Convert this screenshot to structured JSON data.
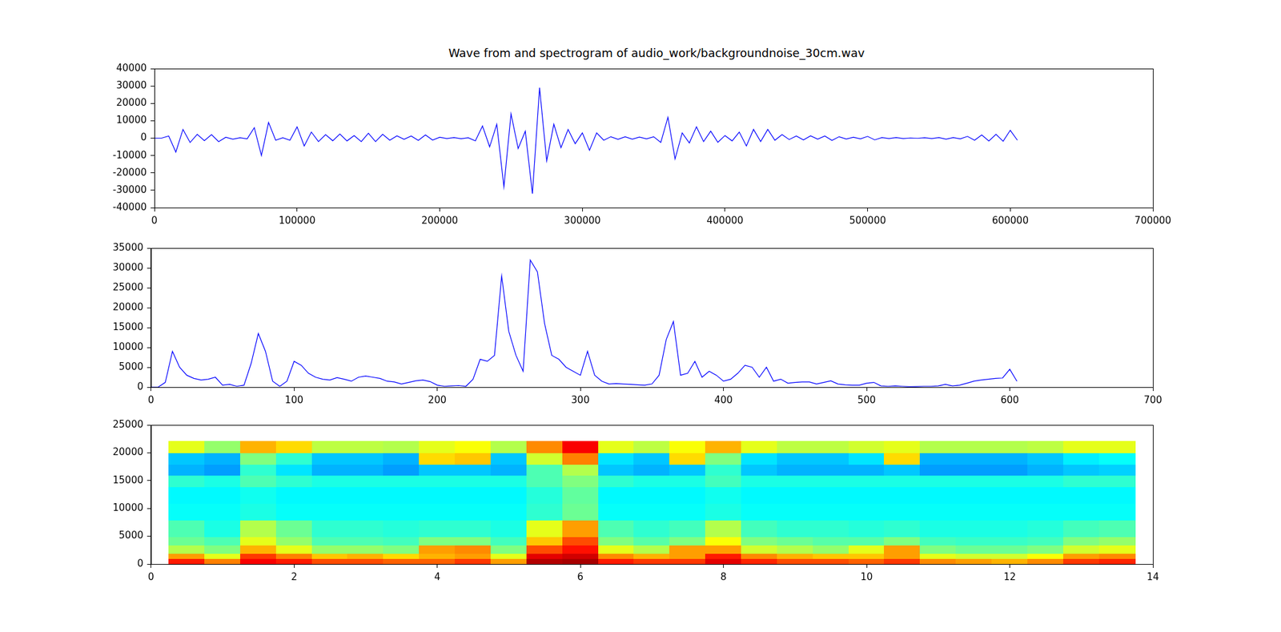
{
  "chart_data": [
    {
      "type": "line",
      "title": "Wave from and spectrogram of audio_work/backgroundnoise_30cm.wav",
      "color": "#0000ff",
      "grid": false,
      "x": [
        0,
        5000,
        10000,
        15000,
        20000,
        25000,
        30000,
        35000,
        40000,
        45000,
        50000,
        55000,
        60000,
        65000,
        70000,
        75000,
        80000,
        85000,
        90000,
        95000,
        100000,
        105000,
        110000,
        115000,
        120000,
        125000,
        130000,
        135000,
        140000,
        145000,
        150000,
        155000,
        160000,
        165000,
        170000,
        175000,
        180000,
        185000,
        190000,
        195000,
        200000,
        205000,
        210000,
        215000,
        220000,
        225000,
        230000,
        235000,
        240000,
        245000,
        250000,
        255000,
        260000,
        265000,
        270000,
        275000,
        280000,
        285000,
        290000,
        295000,
        300000,
        305000,
        310000,
        315000,
        320000,
        325000,
        330000,
        335000,
        340000,
        345000,
        350000,
        355000,
        360000,
        365000,
        370000,
        375000,
        380000,
        385000,
        390000,
        395000,
        400000,
        405000,
        410000,
        415000,
        420000,
        425000,
        430000,
        435000,
        440000,
        445000,
        450000,
        455000,
        460000,
        465000,
        470000,
        475000,
        480000,
        485000,
        490000,
        495000,
        500000,
        505000,
        510000,
        515000,
        520000,
        525000,
        530000,
        535000,
        540000,
        545000,
        550000,
        555000,
        560000,
        565000,
        570000,
        575000,
        580000,
        585000,
        590000,
        595000,
        600000,
        605000
      ],
      "values": [
        0,
        0,
        1200,
        -8000,
        5000,
        -2500,
        2200,
        -1500,
        2000,
        -2000,
        500,
        -600,
        200,
        -400,
        6000,
        -10000,
        9000,
        -1200,
        200,
        -1200,
        6500,
        -4500,
        3500,
        -2000,
        2000,
        -1500,
        2400,
        -1600,
        1500,
        -2000,
        2800,
        -2000,
        2200,
        -1200,
        1300,
        -700,
        1200,
        -1300,
        1800,
        -1100,
        500,
        -200,
        300,
        -300,
        200,
        -1600,
        7000,
        -5000,
        8000,
        -28000,
        14000,
        -6000,
        4000,
        -32000,
        29000,
        -13000,
        8000,
        -5500,
        5000,
        -3200,
        3000,
        -7000,
        3000,
        -1200,
        800,
        -700,
        800,
        -600,
        600,
        -400,
        800,
        -2500,
        12000,
        -12000,
        3000,
        -2800,
        6500,
        -2000,
        4000,
        -2400,
        1500,
        -1600,
        3500,
        -4500,
        5000,
        -2000,
        5000,
        -1200,
        2000,
        -800,
        1200,
        -1000,
        1300,
        -600,
        1200,
        -1300,
        800,
        -500,
        500,
        -400,
        1000,
        -1000,
        300,
        -200,
        300,
        -200,
        100,
        -100,
        200,
        -200,
        300,
        -600,
        300,
        -400,
        1000,
        -1200,
        1800,
        -1600,
        2200,
        -1800,
        4500,
        -1200
      ],
      "xlim": [
        0,
        700000
      ],
      "xticks": [
        0,
        100000,
        200000,
        300000,
        400000,
        500000,
        600000,
        700000
      ],
      "ylim": [
        -40000,
        40000
      ],
      "yticks": [
        -40000,
        -30000,
        -20000,
        -10000,
        0,
        10000,
        20000,
        30000,
        40000
      ]
    },
    {
      "type": "line",
      "color": "#0000ff",
      "grid": false,
      "x": [
        0,
        5,
        10,
        15,
        20,
        25,
        30,
        35,
        40,
        45,
        50,
        55,
        60,
        65,
        70,
        75,
        80,
        85,
        90,
        95,
        100,
        105,
        110,
        115,
        120,
        125,
        130,
        135,
        140,
        145,
        150,
        155,
        160,
        165,
        170,
        175,
        180,
        185,
        190,
        195,
        200,
        205,
        210,
        215,
        220,
        225,
        230,
        235,
        240,
        245,
        250,
        255,
        260,
        265,
        270,
        275,
        280,
        285,
        290,
        295,
        300,
        305,
        310,
        315,
        320,
        325,
        330,
        335,
        340,
        345,
        350,
        355,
        360,
        365,
        370,
        375,
        380,
        385,
        390,
        395,
        400,
        405,
        410,
        415,
        420,
        425,
        430,
        435,
        440,
        445,
        450,
        455,
        460,
        465,
        470,
        475,
        480,
        485,
        490,
        495,
        500,
        505,
        510,
        515,
        520,
        525,
        530,
        535,
        540,
        545,
        550,
        555,
        560,
        565,
        570,
        575,
        580,
        585,
        590,
        595,
        600,
        605
      ],
      "values": [
        0,
        0,
        1200,
        9000,
        5000,
        3000,
        2200,
        1800,
        2000,
        2500,
        500,
        700,
        200,
        500,
        6000,
        13500,
        9000,
        1500,
        200,
        1500,
        6500,
        5500,
        3500,
        2500,
        2000,
        1800,
        2400,
        2000,
        1500,
        2500,
        2800,
        2500,
        2200,
        1500,
        1300,
        800,
        1200,
        1600,
        1800,
        1400,
        500,
        200,
        300,
        400,
        200,
        2000,
        7000,
        6500,
        8000,
        28000,
        14000,
        8000,
        4000,
        32000,
        29000,
        16000,
        8000,
        7000,
        5000,
        4000,
        3000,
        9000,
        3000,
        1500,
        800,
        900,
        800,
        700,
        600,
        500,
        800,
        3000,
        12000,
        16500,
        3000,
        3500,
        6500,
        2500,
        4000,
        3000,
        1500,
        2000,
        3500,
        5500,
        5000,
        2500,
        5000,
        1500,
        2000,
        1000,
        1200,
        1300,
        1300,
        800,
        1200,
        1600,
        800,
        600,
        500,
        500,
        1000,
        1200,
        300,
        200,
        300,
        200,
        100,
        150,
        200,
        200,
        300,
        700,
        300,
        500,
        1000,
        1500,
        1800,
        2000,
        2200,
        2300,
        4500,
        1500
      ],
      "xlim": [
        0,
        700
      ],
      "xticks": [
        0,
        100,
        200,
        300,
        400,
        500,
        600,
        700
      ],
      "ylim": [
        0,
        35000
      ],
      "yticks": [
        0,
        5000,
        10000,
        15000,
        20000,
        25000,
        30000,
        35000
      ]
    },
    {
      "type": "heatmap",
      "grid": false,
      "x_edges": [
        0.25,
        0.75,
        1.25,
        1.75,
        2.25,
        2.75,
        3.25,
        3.75,
        4.25,
        4.75,
        5.25,
        5.75,
        6.25,
        6.75,
        7.25,
        7.75,
        8.25,
        8.75,
        9.25,
        9.75,
        10.25,
        10.75,
        11.25,
        11.75,
        12.25,
        12.75,
        13.25,
        13.75
      ],
      "y_edges": [
        0,
        1000,
        2000,
        3500,
        5000,
        8000,
        11000,
        14000,
        16000,
        18000,
        20000,
        22050
      ],
      "color_range": [
        0,
        1
      ],
      "cells": [
        [
          0.85,
          0.75,
          0.88,
          0.85,
          0.8,
          0.8,
          0.78,
          0.78,
          0.82,
          0.72,
          0.95,
          0.96,
          0.85,
          0.82,
          0.82,
          0.9,
          0.84,
          0.8,
          0.8,
          0.78,
          0.82,
          0.74,
          0.72,
          0.7,
          0.74,
          0.82,
          0.84
        ],
        [
          0.72,
          0.6,
          0.82,
          0.75,
          0.68,
          0.7,
          0.66,
          0.7,
          0.72,
          0.6,
          0.9,
          0.92,
          0.74,
          0.7,
          0.72,
          0.85,
          0.74,
          0.7,
          0.68,
          0.68,
          0.72,
          0.6,
          0.58,
          0.58,
          0.62,
          0.72,
          0.74
        ],
        [
          0.55,
          0.5,
          0.7,
          0.6,
          0.52,
          0.52,
          0.5,
          0.72,
          0.74,
          0.5,
          0.8,
          0.86,
          0.6,
          0.55,
          0.72,
          0.72,
          0.58,
          0.55,
          0.52,
          0.6,
          0.72,
          0.5,
          0.48,
          0.48,
          0.5,
          0.58,
          0.6
        ],
        [
          0.48,
          0.45,
          0.6,
          0.52,
          0.45,
          0.45,
          0.44,
          0.5,
          0.5,
          0.44,
          0.68,
          0.8,
          0.5,
          0.46,
          0.5,
          0.62,
          0.5,
          0.48,
          0.46,
          0.46,
          0.5,
          0.44,
          0.43,
          0.43,
          0.44,
          0.5,
          0.52
        ],
        [
          0.45,
          0.4,
          0.55,
          0.48,
          0.42,
          0.42,
          0.41,
          0.42,
          0.42,
          0.4,
          0.6,
          0.72,
          0.45,
          0.42,
          0.44,
          0.55,
          0.44,
          0.42,
          0.42,
          0.41,
          0.42,
          0.4,
          0.4,
          0.4,
          0.41,
          0.44,
          0.45
        ],
        [
          0.38,
          0.38,
          0.4,
          0.38,
          0.38,
          0.38,
          0.38,
          0.38,
          0.38,
          0.38,
          0.42,
          0.48,
          0.38,
          0.38,
          0.38,
          0.4,
          0.38,
          0.38,
          0.38,
          0.38,
          0.38,
          0.38,
          0.38,
          0.38,
          0.38,
          0.38,
          0.38
        ],
        [
          0.37,
          0.37,
          0.39,
          0.37,
          0.37,
          0.37,
          0.37,
          0.37,
          0.37,
          0.37,
          0.41,
          0.47,
          0.37,
          0.37,
          0.37,
          0.39,
          0.37,
          0.37,
          0.37,
          0.37,
          0.37,
          0.37,
          0.37,
          0.37,
          0.37,
          0.37,
          0.37
        ],
        [
          0.42,
          0.4,
          0.45,
          0.42,
          0.4,
          0.4,
          0.4,
          0.4,
          0.4,
          0.4,
          0.45,
          0.5,
          0.42,
          0.4,
          0.4,
          0.44,
          0.4,
          0.4,
          0.4,
          0.4,
          0.4,
          0.4,
          0.4,
          0.4,
          0.4,
          0.42,
          0.42
        ],
        [
          0.3,
          0.28,
          0.42,
          0.35,
          0.3,
          0.3,
          0.28,
          0.32,
          0.32,
          0.3,
          0.45,
          0.55,
          0.32,
          0.3,
          0.32,
          0.42,
          0.32,
          0.3,
          0.3,
          0.3,
          0.32,
          0.28,
          0.28,
          0.28,
          0.3,
          0.32,
          0.33
        ],
        [
          0.32,
          0.3,
          0.5,
          0.42,
          0.32,
          0.32,
          0.3,
          0.66,
          0.68,
          0.32,
          0.58,
          0.75,
          0.35,
          0.32,
          0.66,
          0.5,
          0.35,
          0.32,
          0.32,
          0.35,
          0.66,
          0.3,
          0.3,
          0.3,
          0.32,
          0.36,
          0.38
        ],
        [
          0.6,
          0.52,
          0.7,
          0.66,
          0.56,
          0.56,
          0.55,
          0.6,
          0.62,
          0.55,
          0.74,
          0.88,
          0.6,
          0.56,
          0.62,
          0.7,
          0.6,
          0.56,
          0.56,
          0.58,
          0.6,
          0.55,
          0.55,
          0.55,
          0.56,
          0.6,
          0.6
        ]
      ],
      "xlim": [
        0,
        14
      ],
      "xticks": [
        0,
        2,
        4,
        6,
        8,
        10,
        12,
        14
      ],
      "ylim": [
        0,
        25000
      ],
      "yticks": [
        0,
        5000,
        10000,
        15000,
        20000,
        25000
      ]
    }
  ]
}
